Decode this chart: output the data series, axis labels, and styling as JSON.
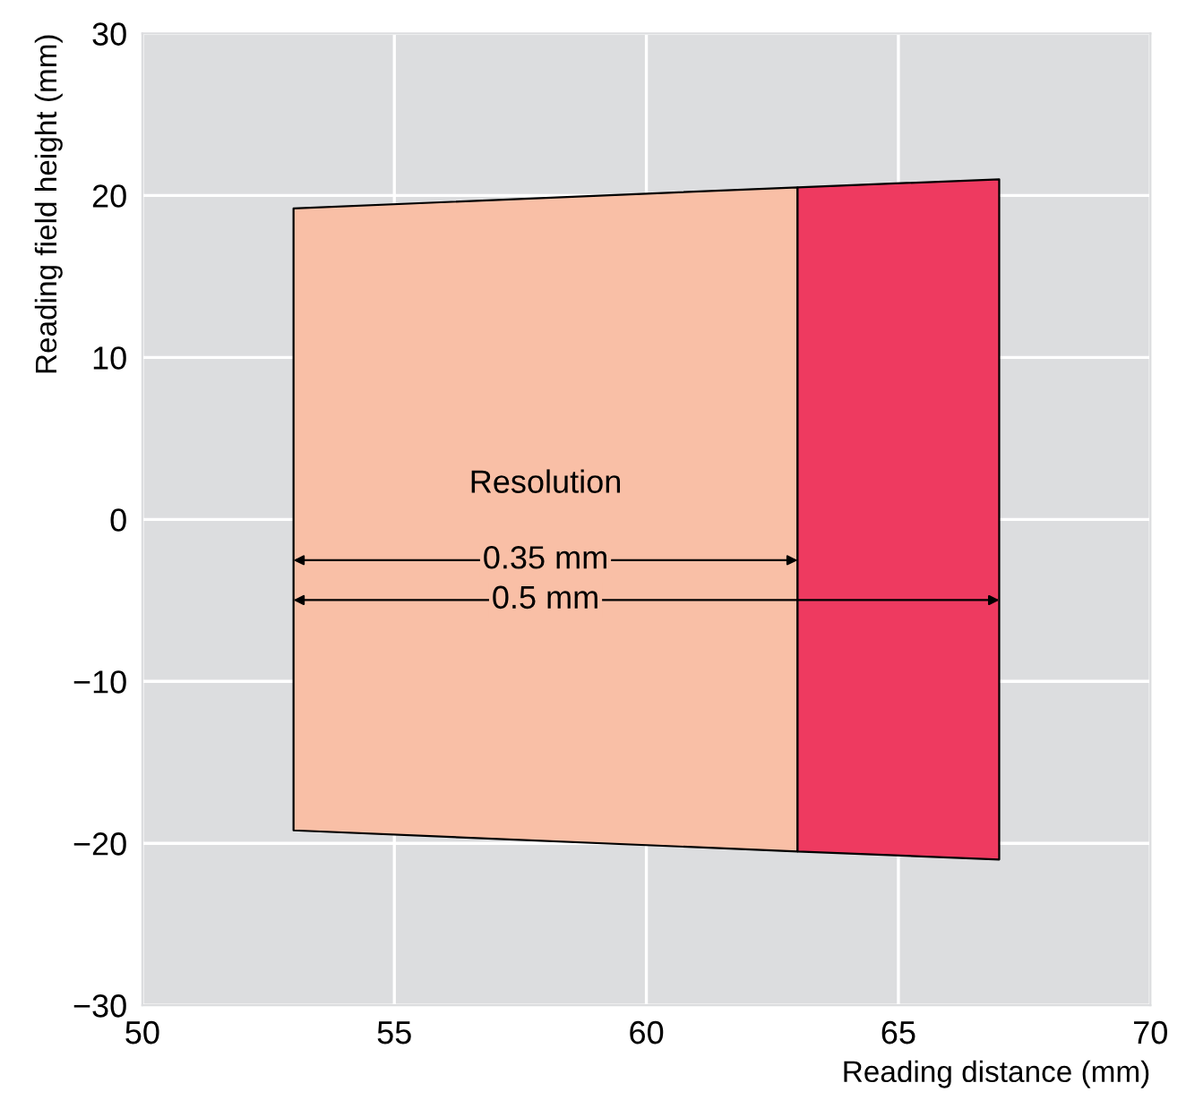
{
  "chart_data": {
    "type": "area",
    "xlabel": "Reading distance (mm)",
    "ylabel": "Reading field height (mm)",
    "series": [
      {
        "color": "#f9bfa6",
        "x": [
          53,
          63,
          63,
          53
        ],
        "values": [
          19.2,
          20.5,
          -20.5,
          -19.2
        ]
      },
      {
        "color": "#ee3a60",
        "x": [
          63,
          67,
          67,
          63
        ],
        "values": [
          20.5,
          21.0,
          -21.0,
          -20.5
        ]
      }
    ],
    "annotations": [
      "Resolution",
      "0.35 mm",
      "0.5 mm"
    ],
    "xlim": [
      50,
      70
    ],
    "xticks": [
      50,
      55,
      60,
      65,
      70
    ],
    "ylim": [
      -30,
      30
    ],
    "yticks": [
      {
        "value": -30,
        "label": "−30"
      },
      {
        "value": -20,
        "label": "−20"
      },
      {
        "value": -10,
        "label": "−10"
      },
      0,
      10,
      20,
      30
    ],
    "grid": true
  }
}
